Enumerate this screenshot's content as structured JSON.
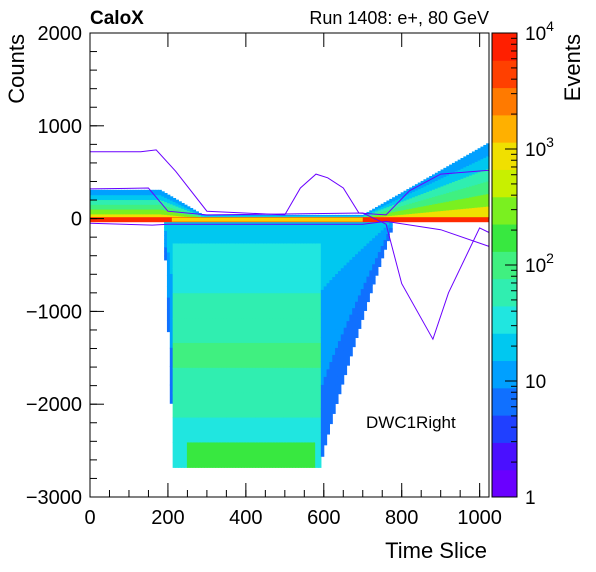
{
  "header": {
    "experiment": "CaloX",
    "run_info": "Run 1408: e+, 80 GeV"
  },
  "chart_data": {
    "type": "heatmap",
    "xlabel": "Time Slice",
    "ylabel": "Counts",
    "zlabel": "Events",
    "xlim": [
      0,
      1024
    ],
    "ylim": [
      -3000,
      2000
    ],
    "zlim": [
      1,
      10000
    ],
    "zscale": "log",
    "x_ticks": [
      "0",
      "200",
      "400",
      "600",
      "800",
      "1000"
    ],
    "y_ticks": [
      "−3000",
      "−2000",
      "−1000",
      "0",
      "1000",
      "2000"
    ],
    "z_ticks": [
      {
        "base": "1",
        "exp": ""
      },
      {
        "base": "10",
        "exp": ""
      },
      {
        "base": "10",
        "exp": "2"
      },
      {
        "base": "10",
        "exp": "3"
      },
      {
        "base": "10",
        "exp": "4"
      }
    ],
    "annotation": "DWC1Right",
    "colors": {
      "low": "#6a00ff",
      "mid": "#26e6e6",
      "high": "#ff1f00"
    }
  }
}
